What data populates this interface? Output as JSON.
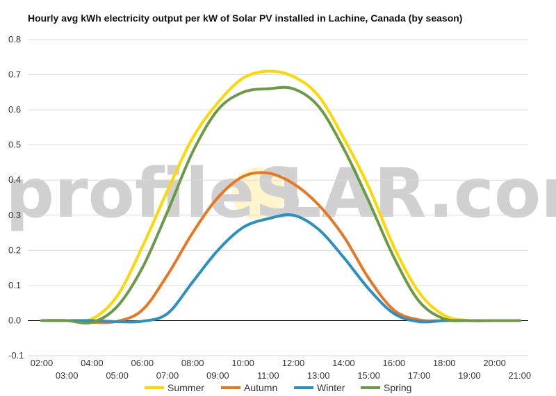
{
  "watermark": {
    "left": "profileS",
    "right": "LAR.com"
  },
  "chart_data": {
    "type": "line",
    "title": "Hourly avg kWh electricity output per kW of Solar PV installed in Lachine, Canada (by season)",
    "xlabel": "",
    "ylabel": "",
    "ylim": [
      -0.1,
      0.8
    ],
    "yticks": [
      "-0.1",
      "0.0",
      "0.1",
      "0.2",
      "0.3",
      "0.4",
      "0.5",
      "0.6",
      "0.7",
      "0.8"
    ],
    "grid": true,
    "legend_position": "bottom",
    "x": [
      "02:00",
      "03:00",
      "04:00",
      "05:00",
      "06:00",
      "07:00",
      "08:00",
      "09:00",
      "10:00",
      "11:00",
      "12:00",
      "13:00",
      "14:00",
      "15:00",
      "16:00",
      "17:00",
      "18:00",
      "19:00",
      "20:00",
      "21:00"
    ],
    "series": [
      {
        "name": "Summer",
        "color": "#FFD700",
        "values": [
          0,
          0,
          0.005,
          0.07,
          0.21,
          0.37,
          0.52,
          0.62,
          0.69,
          0.71,
          0.695,
          0.64,
          0.52,
          0.38,
          0.21,
          0.08,
          0.015,
          0,
          0,
          0
        ]
      },
      {
        "name": "Autumn",
        "color": "#E87722",
        "values": [
          0,
          0,
          -0.005,
          -0.002,
          0.03,
          0.13,
          0.25,
          0.35,
          0.41,
          0.42,
          0.39,
          0.33,
          0.24,
          0.12,
          0.03,
          0.002,
          0,
          0,
          0,
          0
        ]
      },
      {
        "name": "Winter",
        "color": "#2A8FC1",
        "values": [
          0,
          0,
          0,
          -0.003,
          -0.002,
          0.02,
          0.11,
          0.2,
          0.265,
          0.29,
          0.3,
          0.26,
          0.18,
          0.09,
          0.02,
          -0.003,
          0,
          0,
          0,
          0
        ]
      },
      {
        "name": "Spring",
        "color": "#6B9A47",
        "values": [
          0,
          0,
          -0.005,
          0.04,
          0.15,
          0.31,
          0.48,
          0.6,
          0.65,
          0.66,
          0.66,
          0.61,
          0.49,
          0.34,
          0.18,
          0.055,
          0.005,
          0,
          0,
          0
        ]
      }
    ]
  }
}
